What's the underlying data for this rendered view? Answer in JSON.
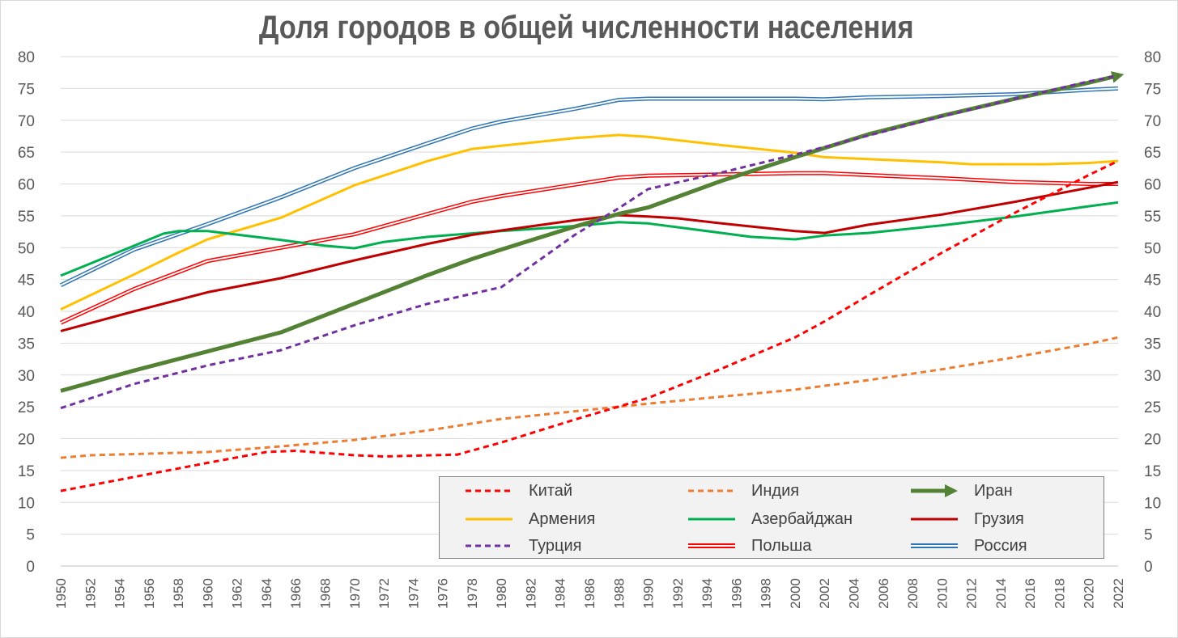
{
  "chart_data": {
    "type": "line",
    "title": "Доля городов в общей численности населения",
    "xlabel": "",
    "ylabel": "",
    "xlim": [
      1950,
      2022
    ],
    "ylim": [
      0,
      80
    ],
    "y_ticks": [
      "0",
      "5",
      "10",
      "15",
      "20",
      "25",
      "30",
      "35",
      "40",
      "45",
      "50",
      "55",
      "60",
      "65",
      "70",
      "75",
      "80"
    ],
    "x_ticks": [
      "1950",
      "1952",
      "1954",
      "1956",
      "1958",
      "1960",
      "1962",
      "1964",
      "1966",
      "1968",
      "1970",
      "1972",
      "1974",
      "1976",
      "1978",
      "1980",
      "1982",
      "1984",
      "1986",
      "1988",
      "1990",
      "1992",
      "1994",
      "1996",
      "1998",
      "2000",
      "2002",
      "2004",
      "2006",
      "2008",
      "2010",
      "2012",
      "2014",
      "2016",
      "2018",
      "2020",
      "2022"
    ],
    "grid": true,
    "legend_position": "bottom-right",
    "series": [
      {
        "name": "Китай",
        "color": "#ff0000",
        "style": "dashed",
        "points": [
          [
            1950,
            11.8
          ],
          [
            1955,
            14.0
          ],
          [
            1960,
            16.2
          ],
          [
            1964,
            17.9
          ],
          [
            1966,
            18.1
          ],
          [
            1970,
            17.4
          ],
          [
            1972,
            17.2
          ],
          [
            1977,
            17.5
          ],
          [
            1980,
            19.4
          ],
          [
            1985,
            23.0
          ],
          [
            1990,
            26.4
          ],
          [
            1995,
            31.0
          ],
          [
            2000,
            35.9
          ],
          [
            2002,
            38.4
          ],
          [
            2005,
            42.5
          ],
          [
            2010,
            49.2
          ],
          [
            2015,
            55.5
          ],
          [
            2020,
            61.4
          ],
          [
            2022,
            63.6
          ]
        ]
      },
      {
        "name": "Индия",
        "color": "#ed7d31",
        "style": "dashed",
        "points": [
          [
            1950,
            17.0
          ],
          [
            1952,
            17.4
          ],
          [
            1960,
            17.9
          ],
          [
            1965,
            18.8
          ],
          [
            1970,
            19.8
          ],
          [
            1975,
            21.3
          ],
          [
            1980,
            23.1
          ],
          [
            1985,
            24.3
          ],
          [
            1990,
            25.5
          ],
          [
            1995,
            26.6
          ],
          [
            2000,
            27.7
          ],
          [
            2005,
            29.2
          ],
          [
            2010,
            30.9
          ],
          [
            2015,
            32.8
          ],
          [
            2020,
            34.9
          ],
          [
            2022,
            35.9
          ]
        ]
      },
      {
        "name": "Иран",
        "color": "#548235",
        "style": "solid-thick-arrow",
        "points": [
          [
            1950,
            27.5
          ],
          [
            1955,
            30.7
          ],
          [
            1960,
            33.7
          ],
          [
            1965,
            36.7
          ],
          [
            1970,
            41.2
          ],
          [
            1975,
            45.7
          ],
          [
            1978,
            48.2
          ],
          [
            1980,
            49.7
          ],
          [
            1985,
            53.3
          ],
          [
            1988,
            55.3
          ],
          [
            1990,
            56.3
          ],
          [
            1995,
            60.5
          ],
          [
            2000,
            64.2
          ],
          [
            2005,
            67.8
          ],
          [
            2010,
            70.7
          ],
          [
            2015,
            73.4
          ],
          [
            2020,
            75.9
          ],
          [
            2022,
            77.0
          ]
        ]
      },
      {
        "name": "Армения",
        "color": "#ffc000",
        "style": "solid",
        "points": [
          [
            1950,
            40.3
          ],
          [
            1955,
            45.8
          ],
          [
            1958,
            49.2
          ],
          [
            1960,
            51.3
          ],
          [
            1965,
            54.7
          ],
          [
            1970,
            59.8
          ],
          [
            1975,
            63.6
          ],
          [
            1978,
            65.5
          ],
          [
            1980,
            66.0
          ],
          [
            1985,
            67.2
          ],
          [
            1988,
            67.7
          ],
          [
            1990,
            67.4
          ],
          [
            1995,
            66.1
          ],
          [
            2000,
            64.9
          ],
          [
            2002,
            64.2
          ],
          [
            2005,
            63.9
          ],
          [
            2010,
            63.4
          ],
          [
            2012,
            63.1
          ],
          [
            2017,
            63.1
          ],
          [
            2020,
            63.3
          ],
          [
            2022,
            63.6
          ]
        ]
      },
      {
        "name": "Азербайджан",
        "color": "#00b050",
        "style": "solid",
        "points": [
          [
            1950,
            45.6
          ],
          [
            1955,
            50.3
          ],
          [
            1957,
            52.2
          ],
          [
            1958,
            52.6
          ],
          [
            1960,
            52.6
          ],
          [
            1965,
            51.2
          ],
          [
            1968,
            50.3
          ],
          [
            1970,
            49.9
          ],
          [
            1972,
            50.9
          ],
          [
            1975,
            51.7
          ],
          [
            1980,
            52.6
          ],
          [
            1985,
            53.4
          ],
          [
            1988,
            54.0
          ],
          [
            1990,
            53.8
          ],
          [
            1995,
            52.3
          ],
          [
            1997,
            51.7
          ],
          [
            2000,
            51.3
          ],
          [
            2002,
            51.9
          ],
          [
            2005,
            52.3
          ],
          [
            2010,
            53.5
          ],
          [
            2015,
            54.9
          ],
          [
            2020,
            56.5
          ],
          [
            2022,
            57.1
          ]
        ]
      },
      {
        "name": "Грузия",
        "color": "#c00000",
        "style": "solid",
        "points": [
          [
            1950,
            36.9
          ],
          [
            1955,
            40.0
          ],
          [
            1957,
            41.2
          ],
          [
            1960,
            43.0
          ],
          [
            1965,
            45.2
          ],
          [
            1970,
            48.0
          ],
          [
            1975,
            50.6
          ],
          [
            1978,
            52.0
          ],
          [
            1980,
            52.7
          ],
          [
            1985,
            54.3
          ],
          [
            1988,
            55.1
          ],
          [
            1990,
            54.9
          ],
          [
            1992,
            54.6
          ],
          [
            1995,
            53.8
          ],
          [
            2000,
            52.6
          ],
          [
            2002,
            52.3
          ],
          [
            2005,
            53.6
          ],
          [
            2010,
            55.2
          ],
          [
            2015,
            57.2
          ],
          [
            2020,
            59.4
          ],
          [
            2022,
            60.3
          ]
        ]
      },
      {
        "name": "Турция",
        "color": "#7030a0",
        "style": "dashed",
        "points": [
          [
            1950,
            24.8
          ],
          [
            1955,
            28.6
          ],
          [
            1960,
            31.5
          ],
          [
            1965,
            33.9
          ],
          [
            1970,
            37.8
          ],
          [
            1975,
            41.2
          ],
          [
            1980,
            43.8
          ],
          [
            1985,
            52.0
          ],
          [
            1988,
            56.2
          ],
          [
            1990,
            59.2
          ],
          [
            1995,
            61.8
          ],
          [
            2000,
            64.6
          ],
          [
            2005,
            67.6
          ],
          [
            2010,
            70.6
          ],
          [
            2015,
            73.4
          ],
          [
            2020,
            76.1
          ],
          [
            2022,
            77.0
          ]
        ]
      },
      {
        "name": "Польша",
        "color": "#ff0000",
        "style": "double",
        "points": [
          [
            1950,
            38.2
          ],
          [
            1955,
            43.5
          ],
          [
            1960,
            47.9
          ],
          [
            1965,
            50.0
          ],
          [
            1970,
            52.1
          ],
          [
            1975,
            55.3
          ],
          [
            1978,
            57.2
          ],
          [
            1980,
            58.1
          ],
          [
            1985,
            59.9
          ],
          [
            1988,
            61.0
          ],
          [
            1990,
            61.3
          ],
          [
            1995,
            61.5
          ],
          [
            2000,
            61.7
          ],
          [
            2002,
            61.7
          ],
          [
            2005,
            61.4
          ],
          [
            2010,
            60.9
          ],
          [
            2015,
            60.3
          ],
          [
            2020,
            60.0
          ],
          [
            2022,
            60.0
          ]
        ]
      },
      {
        "name": "Россия",
        "color": "#2e75b6",
        "style": "double",
        "points": [
          [
            1950,
            44.1
          ],
          [
            1955,
            49.7
          ],
          [
            1960,
            53.7
          ],
          [
            1965,
            57.9
          ],
          [
            1970,
            62.5
          ],
          [
            1975,
            66.4
          ],
          [
            1978,
            68.7
          ],
          [
            1980,
            69.8
          ],
          [
            1985,
            71.8
          ],
          [
            1988,
            73.2
          ],
          [
            1990,
            73.4
          ],
          [
            1995,
            73.4
          ],
          [
            2000,
            73.4
          ],
          [
            2002,
            73.3
          ],
          [
            2005,
            73.6
          ],
          [
            2010,
            73.8
          ],
          [
            2015,
            74.1
          ],
          [
            2020,
            74.8
          ],
          [
            2022,
            75.0
          ]
        ]
      }
    ]
  }
}
